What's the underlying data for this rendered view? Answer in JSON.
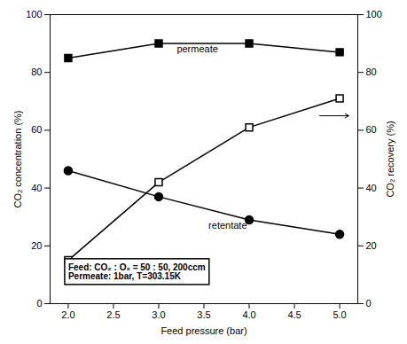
{
  "chart_data": {
    "type": "line",
    "x": [
      2.0,
      3.0,
      4.0,
      5.0
    ],
    "series": [
      {
        "values": [
          85,
          90,
          90,
          87
        ],
        "color": "#000000",
        "marker": "square",
        "line_style": "solid"
      },
      {
        "values": [
          46,
          37,
          29,
          24
        ],
        "color": "#000000",
        "marker": "circle",
        "line_style": "solid"
      },
      {
        "values": [
          15,
          42,
          61,
          71
        ],
        "color": "#000000",
        "marker": "open_square",
        "line_style": "solid",
        "axis": "y2"
      }
    ],
    "xlabel": "Feed pressure (bar)",
    "ylabel": "CO₂ concentration (%)",
    "y2label": "CO₂ recovery (%)",
    "xlim": [
      1.8,
      5.2
    ],
    "xticks": [
      {
        "value": 2.0,
        "label": "2.0"
      },
      2.5,
      {
        "value": 3.0,
        "label": "3.0"
      },
      3.5,
      {
        "value": 4.0,
        "label": "4.0"
      },
      4.5,
      {
        "value": 5.0,
        "label": "5.0"
      }
    ],
    "ylim": [
      0,
      100
    ],
    "yticks": [
      0,
      20,
      40,
      60,
      80,
      100
    ],
    "y2lim": [
      0,
      100
    ],
    "y2ticks": [
      0,
      20,
      40,
      60,
      80,
      100
    ],
    "annotations": [
      {
        "text": "permeate",
        "x": 3.2,
        "y": 88
      },
      {
        "text": "retentate",
        "x": 3.55,
        "y": 27
      },
      {
        "text": "Feed: CO₂ : O₂ = 50 : 50, 200ccm\nPermeate: 1bar, T=303.15K",
        "x": 2.0,
        "y": 11,
        "boxed": true
      }
    ],
    "arrows": [
      {
        "x1": 4.78,
        "x2": 5.1,
        "y": 65
      }
    ],
    "grid": false
  }
}
